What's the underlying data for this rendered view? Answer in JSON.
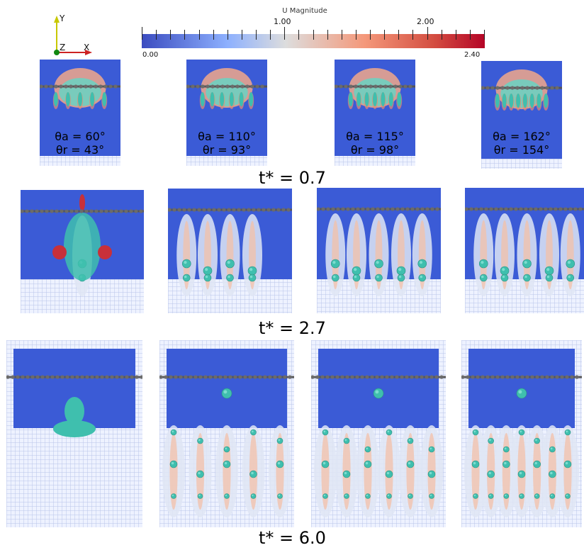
{
  "colorbar": {
    "title": "U Magnitude",
    "min_label": "0.00",
    "max_label": "2.40",
    "major_ticks": [
      "1.00",
      "2.00"
    ],
    "colors": {
      "low": "#3b4cc0",
      "mid": "#dddddd",
      "high": "#b40426"
    }
  },
  "axes_triad": {
    "y": "Y",
    "z": "Z",
    "x": "X"
  },
  "rows": [
    {
      "time_label": "t* = 0.7"
    },
    {
      "time_label": "t* = 2.7"
    },
    {
      "time_label": "t* = 6.0"
    }
  ],
  "cases": [
    {
      "theta_a": "θa = 60°",
      "theta_r": "θr = 43°"
    },
    {
      "theta_a": "θa = 110°",
      "theta_r": "θr = 93°"
    },
    {
      "theta_a": "θa = 115°",
      "theta_r": "θr = 98°"
    },
    {
      "theta_a": "θa = 162°",
      "theta_r": "θr = 154°"
    }
  ]
}
